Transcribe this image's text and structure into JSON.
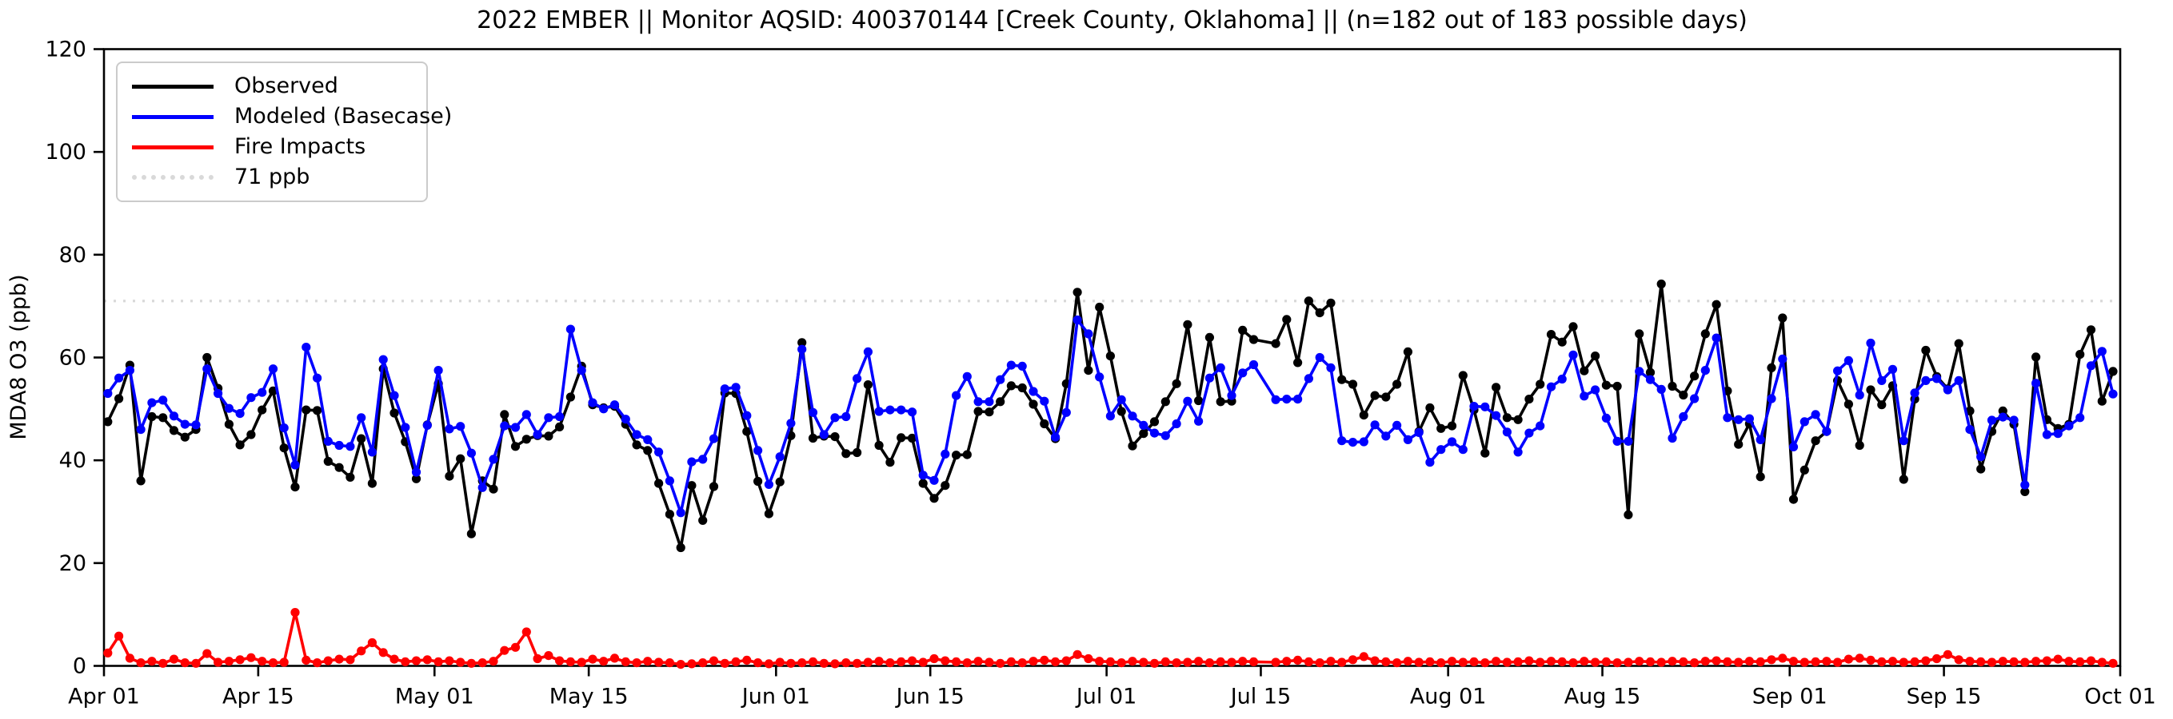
{
  "title": "2022 EMBER || Monitor AQSID: 400370144 [Creek County, Oklahoma] || (n=182 out of 183 possible days)",
  "axes": {
    "ylabel": "MDA8 O3 (ppb)",
    "ylim": [
      0,
      120
    ],
    "y_ticks": [
      0,
      20,
      40,
      60,
      80,
      100,
      120
    ],
    "x_ticks": [
      {
        "label": "Apr 01",
        "day": 0
      },
      {
        "label": "Apr 15",
        "day": 14
      },
      {
        "label": "May 01",
        "day": 30
      },
      {
        "label": "May 15",
        "day": 44
      },
      {
        "label": "Jun 01",
        "day": 61
      },
      {
        "label": "Jun 15",
        "day": 75
      },
      {
        "label": "Jul 01",
        "day": 91
      },
      {
        "label": "Jul 15",
        "day": 105
      },
      {
        "label": "Aug 01",
        "day": 122
      },
      {
        "label": "Aug 15",
        "day": 136
      },
      {
        "label": "Sep 01",
        "day": 153
      },
      {
        "label": "Sep 15",
        "day": 167
      },
      {
        "label": "Oct 01",
        "day": 183
      }
    ]
  },
  "legend": {
    "items": [
      {
        "label": "Observed",
        "color": "#000000",
        "style": "solid"
      },
      {
        "label": "Modeled (Basecase)",
        "color": "#0000ff",
        "style": "solid"
      },
      {
        "label": "Fire Impacts",
        "color": "#ff0000",
        "style": "solid"
      },
      {
        "label": "71 ppb",
        "color": "#d9d9d9",
        "style": "dotted"
      }
    ]
  },
  "chart_data": {
    "type": "line",
    "title": "2022 EMBER || Monitor AQSID: 400370144 [Creek County, Oklahoma] || (n=182 out of 183 possible days)",
    "xlabel": "",
    "ylabel": "MDA8 O3 (ppb)",
    "x_start": "2022-04-01",
    "x_end": "2022-10-01",
    "n_days": 183,
    "ylim": [
      0,
      120
    ],
    "grid": false,
    "legend_position": "upper-left",
    "threshold": {
      "value": 71,
      "label": "71 ppb",
      "color": "#d9d9d9",
      "style": "dotted"
    },
    "note": "daily MDA8 values Apr 1 - Sep 30 2022; Jul 15 missing (n=182)",
    "series": [
      {
        "name": "Observed",
        "color": "#000000",
        "values": [
          47.5,
          52,
          58.5,
          36,
          48.5,
          48.3,
          45.8,
          44.5,
          46,
          60,
          54,
          47,
          43,
          45,
          49.8,
          53.5,
          42.4,
          34.8,
          49.8,
          49.7,
          39.8,
          38.6,
          36.7,
          44.2,
          35.5,
          57.8,
          49.2,
          43.6,
          36.4,
          46.9,
          54.9,
          36.9,
          40.3,
          25.7,
          36,
          34.4,
          48.9,
          42.7,
          44.1,
          44.8,
          44.7,
          46.5,
          52.3,
          58.3,
          50.8,
          50.2,
          50.5,
          47,
          43,
          41.9,
          35.5,
          29.5,
          23,
          35.1,
          28.3,
          34.9,
          53.1,
          53,
          45.6,
          35.9,
          29.6,
          35.8,
          44.8,
          62.9,
          44.3,
          44.7,
          44.6,
          41.3,
          41.5,
          54.7,
          42.9,
          39.6,
          44.4,
          44.3,
          35.5,
          32.6,
          35.1,
          41,
          41.1,
          49.5,
          49.4,
          51.4,
          54.5,
          54.1,
          50.9,
          47.1,
          44.2,
          54.9,
          72.7,
          57.5,
          69.8,
          60.3,
          49.5,
          42.8,
          45.2,
          47.5,
          51.4,
          54.9,
          66.4,
          51.6,
          63.9,
          51.4,
          51.5,
          65.3,
          63.5,
          null,
          62.7,
          67.4,
          59,
          71,
          68.7,
          70.6,
          55.7,
          54.8,
          48.8,
          52.6,
          52.3,
          54.8,
          61.1,
          45.6,
          50.2,
          46.2,
          46.7,
          56.5,
          49.8,
          41.4,
          54.2,
          48.3,
          47.9,
          51.9,
          54.8,
          64.5,
          63,
          66,
          57.4,
          60.3,
          54.6,
          54.4,
          29.4,
          64.6,
          57.1,
          74.3,
          54.4,
          52.7,
          56.4,
          64.6,
          70.3,
          53.5,
          43.1,
          47.1,
          36.8,
          58,
          67.7,
          32.4,
          38.1,
          43.8,
          45.6,
          55.5,
          50.9,
          42.9,
          53.7,
          50.8,
          54.5,
          36.3,
          51.9,
          61.4,
          56.3,
          53.9,
          62.7,
          49.6,
          38.3,
          45.6,
          49.6,
          47,
          33.9,
          60.1,
          47.9,
          46.2,
          47,
          60.6,
          65.4,
          51.5,
          57.3
        ]
      },
      {
        "name": "Modeled (Basecase)",
        "color": "#0000ff",
        "values": [
          53,
          56,
          57.5,
          46,
          51.2,
          51.7,
          48.6,
          47,
          46.9,
          57.8,
          53,
          50.1,
          49.1,
          52.2,
          53.2,
          57.8,
          46.3,
          39.1,
          62,
          56,
          43.7,
          42.9,
          42.7,
          48.3,
          41.6,
          59.6,
          52.6,
          46.4,
          37.7,
          46.8,
          57.5,
          46.1,
          46.6,
          41.4,
          34.7,
          40.2,
          46.7,
          46.4,
          48.9,
          45,
          48.3,
          48.5,
          65.5,
          57.5,
          51.2,
          50,
          50.8,
          48,
          45,
          44,
          41.6,
          36,
          29.8,
          39.7,
          40.2,
          44.2,
          53.9,
          54.2,
          48.7,
          41.9,
          35.3,
          40.7,
          47.2,
          61.6,
          49.3,
          45,
          48.3,
          48.5,
          55.9,
          61.1,
          49.5,
          49.8,
          49.8,
          49.4,
          37.1,
          36.1,
          41.2,
          52.6,
          56.3,
          51.4,
          51.4,
          55.7,
          58.5,
          58.3,
          53.4,
          51.5,
          44.5,
          49.3,
          67.3,
          64.6,
          56.2,
          48.6,
          51.8,
          48.6,
          46.8,
          45.3,
          44.8,
          47.1,
          51.5,
          47.6,
          56,
          58,
          52.6,
          57,
          58.6,
          null,
          51.8,
          51.9,
          51.9,
          55.9,
          60,
          58,
          43.8,
          43.5,
          43.6,
          46.9,
          44.7,
          46.8,
          44,
          45.4,
          39.6,
          42.1,
          43.6,
          42.1,
          50.5,
          50.4,
          48.7,
          45.5,
          41.6,
          45.3,
          46.7,
          54.3,
          55.8,
          60.5,
          52.5,
          53.7,
          48.2,
          43.7,
          43.7,
          57.3,
          55.7,
          53.8,
          44.3,
          48.5,
          52,
          57.5,
          63.8,
          48.3,
          47.9,
          48.1,
          44,
          52,
          59.7,
          42.6,
          47.5,
          48.9,
          45.6,
          57.4,
          59.4,
          52.7,
          62.8,
          55.5,
          57.7,
          43.8,
          53.1,
          55.5,
          55.9,
          53.7,
          55.5,
          46,
          40.7,
          47.8,
          48.4,
          47.8,
          35.2,
          55,
          45,
          45.2,
          46.7,
          48.3,
          58.4,
          61.2,
          52.9
        ]
      },
      {
        "name": "Fire Impacts",
        "color": "#ff0000",
        "values": [
          2.5,
          5.8,
          1.5,
          0.6,
          0.9,
          0.5,
          1.3,
          0.6,
          0.5,
          2.4,
          0.7,
          0.9,
          1.2,
          1.6,
          0.9,
          0.6,
          0.7,
          10.4,
          1.1,
          0.6,
          1,
          1.3,
          1.2,
          2.9,
          4.5,
          2.6,
          1.3,
          0.8,
          1,
          1.2,
          0.8,
          1,
          0.7,
          0.5,
          0.6,
          0.9,
          3,
          3.6,
          6.6,
          1.4,
          2,
          1,
          0.8,
          0.7,
          1.3,
          0.9,
          1.5,
          0.8,
          0.6,
          0.9,
          0.7,
          0.6,
          0.3,
          0.4,
          0.6,
          1,
          0.5,
          0.8,
          1.1,
          0.6,
          0.4,
          0.7,
          0.5,
          0.6,
          0.8,
          0.5,
          0.4,
          0.6,
          0.5,
          0.7,
          0.9,
          0.6,
          0.8,
          1,
          0.7,
          1.4,
          1,
          0.8,
          0.6,
          0.9,
          0.7,
          0.5,
          0.8,
          0.6,
          0.9,
          1.1,
          0.8,
          1,
          2.2,
          1.4,
          0.9,
          0.8,
          0.6,
          0.9,
          0.7,
          0.5,
          0.8,
          0.6,
          0.7,
          0.9,
          0.6,
          0.8,
          0.7,
          0.9,
          0.8,
          null,
          0.7,
          0.9,
          1.1,
          0.8,
          0.6,
          0.9,
          0.7,
          1.2,
          1.8,
          1,
          0.8,
          0.6,
          0.9,
          0.7,
          0.8,
          0.6,
          0.9,
          0.7,
          0.8,
          0.6,
          0.9,
          0.7,
          0.8,
          1,
          0.7,
          0.9,
          0.8,
          0.6,
          0.9,
          0.7,
          0.8,
          0.6,
          0.7,
          0.9,
          0.8,
          0.7,
          0.9,
          0.8,
          0.6,
          0.9,
          1,
          0.8,
          0.7,
          0.9,
          0.8,
          1.2,
          1.5,
          0.9,
          0.7,
          0.8,
          0.9,
          0.7,
          1.3,
          1.5,
          1.1,
          0.8,
          0.9,
          0.7,
          0.8,
          1,
          1.4,
          2.2,
          1.2,
          0.9,
          0.8,
          0.7,
          0.9,
          0.8,
          0.7,
          0.9,
          1,
          1.3,
          0.9,
          0.8,
          1,
          0.7,
          0.5
        ]
      }
    ]
  }
}
